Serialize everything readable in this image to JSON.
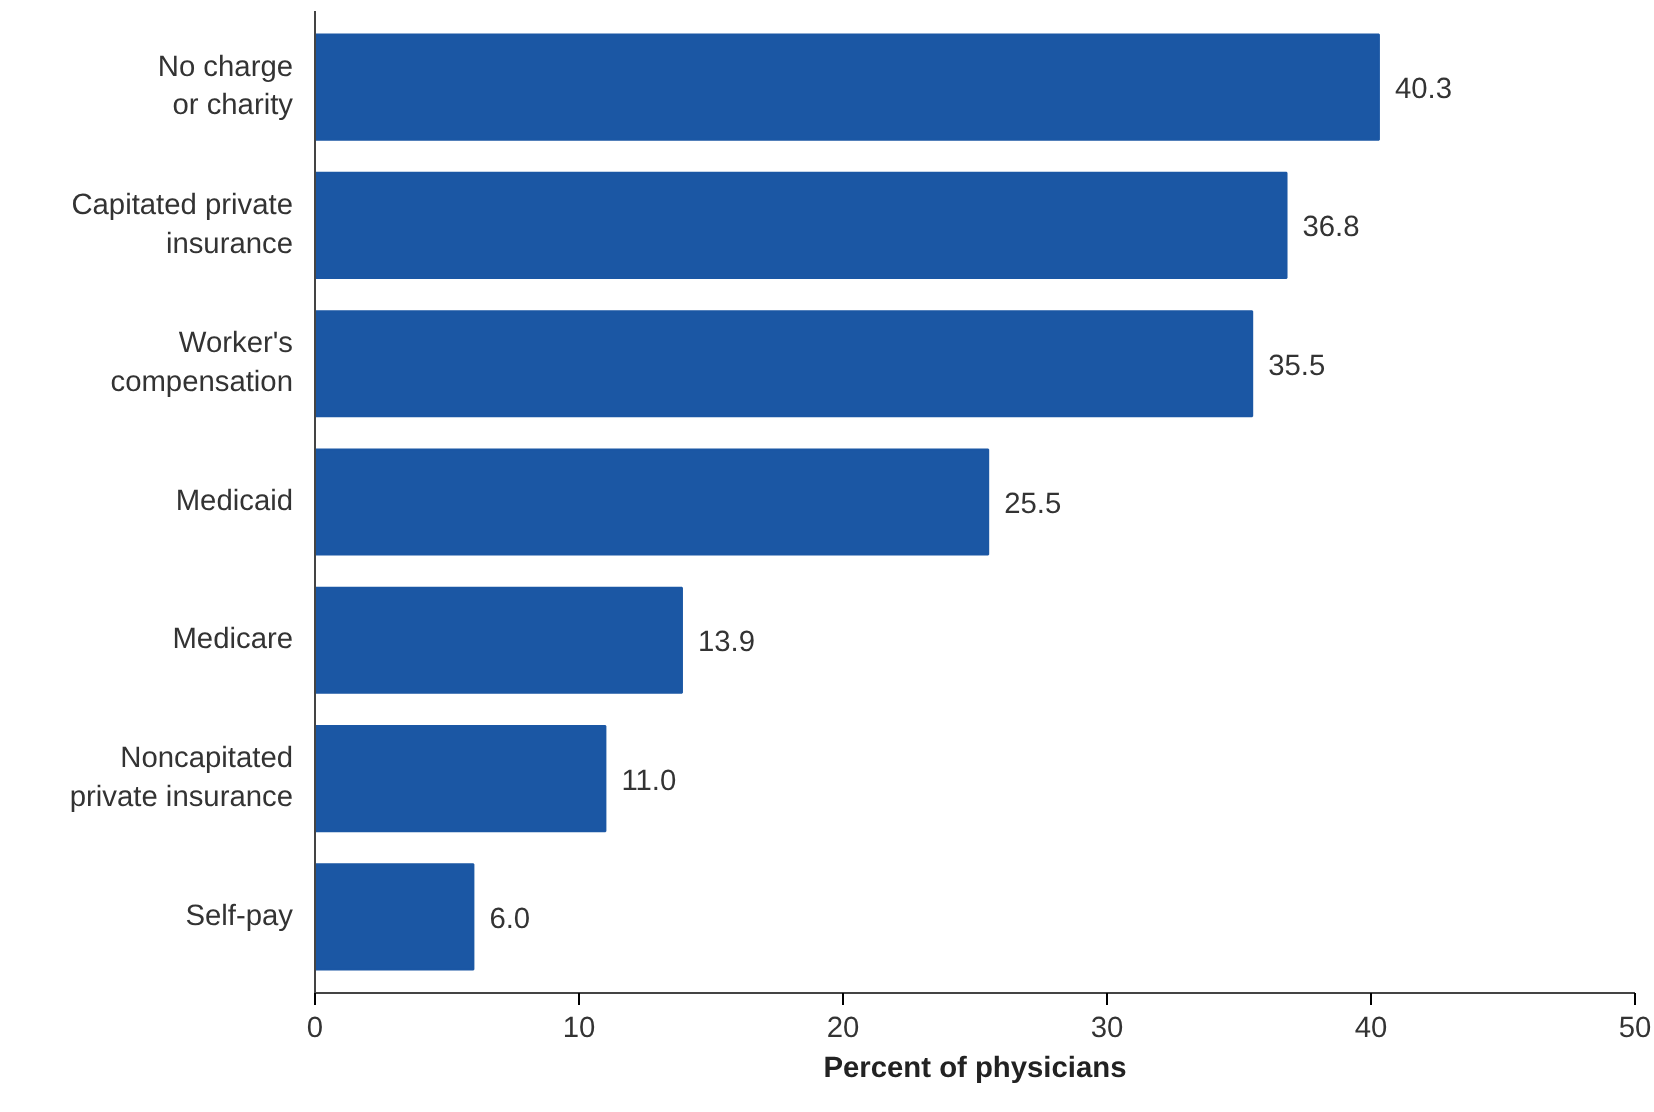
{
  "chart_data": {
    "type": "bar",
    "orientation": "horizontal",
    "xlabel": "Percent of physicians",
    "categories": [
      "No charge\nor charity",
      "Capitated private\ninsurance",
      "Worker's\ncompensation",
      "Medicaid",
      "Medicare",
      "Noncapitated\nprivate insurance",
      "Self-pay"
    ],
    "values": [
      40.3,
      36.8,
      35.5,
      25.5,
      13.9,
      11.0,
      6.0
    ],
    "value_labels": [
      "40.3",
      "36.8",
      "35.5",
      "25.5",
      "13.9",
      "11.0",
      "6.0"
    ],
    "color": "#1b57a4",
    "xlim": [
      0,
      50
    ],
    "xticks": [
      0,
      10,
      20,
      30,
      40,
      50
    ],
    "grid": false
  }
}
